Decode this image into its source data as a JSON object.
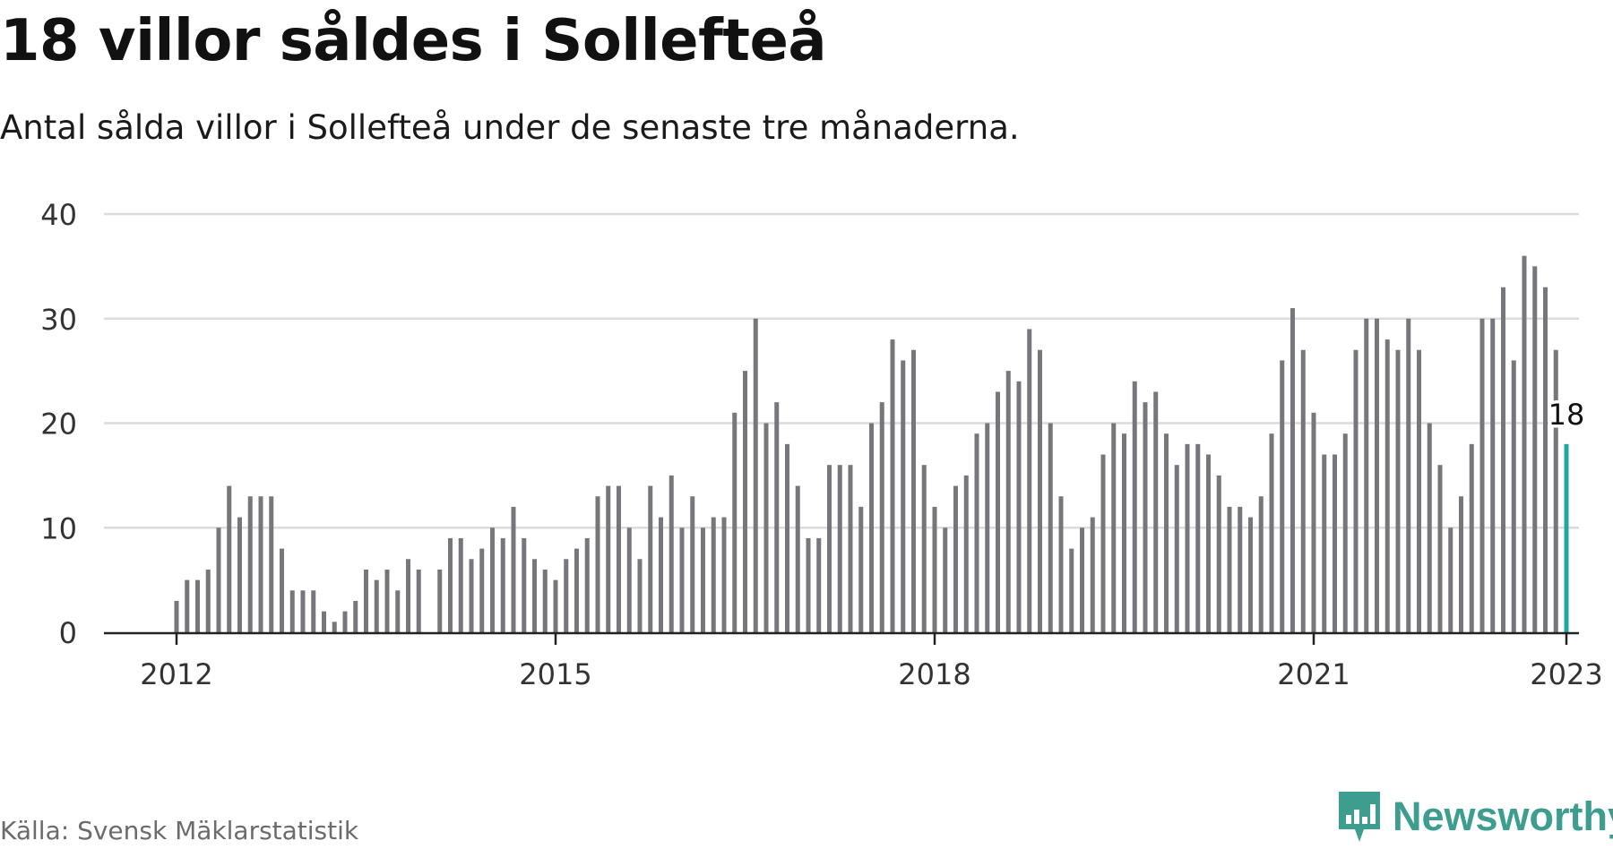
{
  "title": "18 villor såldes i Sollefteå",
  "subtitle": "Antal sålda villor i Sollefteå under de senaste tre månaderna.",
  "source": "Källa: Svensk Mäklarstatistik",
  "brand": "Newsworthy",
  "brand_icon": "newsworthy-logo-icon",
  "colors": {
    "bar": "#77767b",
    "highlight": "#1fa89b",
    "grid": "#dcdcdc",
    "axis": "#222222",
    "brand": "#3d9d8f"
  },
  "chart_data": {
    "type": "bar",
    "x_axis": "date",
    "ylim": [
      0,
      40
    ],
    "yticks": [
      0,
      10,
      20,
      30,
      40
    ],
    "xticks": [
      "2012",
      "2015",
      "2018",
      "2021",
      "2023"
    ],
    "grid": true,
    "highlight": {
      "x": "2023-01",
      "value": 18,
      "label": "18"
    },
    "series": [
      {
        "x": [
          "2012-01",
          "2012-02",
          "2012-03",
          "2012-04",
          "2012-05",
          "2012-06",
          "2012-07",
          "2012-08",
          "2012-09",
          "2012-10",
          "2012-11",
          "2012-12",
          "2013-01",
          "2013-02",
          "2013-03",
          "2013-04",
          "2013-05",
          "2013-06",
          "2013-07",
          "2013-08",
          "2013-09",
          "2013-10",
          "2013-11",
          "2013-12",
          "2014-01",
          "2014-02",
          "2014-03",
          "2014-04",
          "2014-05",
          "2014-06",
          "2014-07",
          "2014-08",
          "2014-09",
          "2014-10",
          "2014-11",
          "2014-12",
          "2015-01",
          "2015-02",
          "2015-03",
          "2015-04",
          "2015-05",
          "2015-06",
          "2015-07",
          "2015-08",
          "2015-09",
          "2015-10",
          "2015-11",
          "2015-12",
          "2016-01",
          "2016-02",
          "2016-03",
          "2016-04",
          "2016-05",
          "2016-06",
          "2016-07",
          "2016-08",
          "2016-09",
          "2016-10",
          "2016-11",
          "2016-12",
          "2017-01",
          "2017-02",
          "2017-03",
          "2017-04",
          "2017-05",
          "2017-06",
          "2017-07",
          "2017-08",
          "2017-09",
          "2017-10",
          "2017-11",
          "2017-12",
          "2018-01",
          "2018-02",
          "2018-03",
          "2018-04",
          "2018-05",
          "2018-06",
          "2018-07",
          "2018-08",
          "2018-09",
          "2018-10",
          "2018-11",
          "2018-12",
          "2019-01",
          "2019-02",
          "2019-03",
          "2019-04",
          "2019-05",
          "2019-06",
          "2019-07",
          "2019-08",
          "2019-09",
          "2019-10",
          "2019-11",
          "2019-12",
          "2020-01",
          "2020-02",
          "2020-03",
          "2020-04",
          "2020-05",
          "2020-06",
          "2020-07",
          "2020-08",
          "2020-09",
          "2020-10",
          "2020-11",
          "2020-12",
          "2021-01",
          "2021-02",
          "2021-03",
          "2021-04",
          "2021-05",
          "2021-06",
          "2021-07",
          "2021-08",
          "2021-09",
          "2021-10",
          "2021-11",
          "2021-12",
          "2022-01",
          "2022-02",
          "2022-03",
          "2022-04",
          "2022-05",
          "2022-06",
          "2022-07",
          "2022-08",
          "2022-09",
          "2022-10",
          "2022-11",
          "2022-12",
          "2023-01"
        ],
        "values": [
          3,
          5,
          5,
          6,
          10,
          14,
          11,
          13,
          13,
          13,
          8,
          4,
          4,
          4,
          2,
          1,
          2,
          3,
          6,
          5,
          6,
          4,
          7,
          6,
          null,
          6,
          9,
          9,
          7,
          8,
          10,
          9,
          12,
          9,
          7,
          6,
          5,
          7,
          8,
          9,
          13,
          14,
          14,
          10,
          7,
          14,
          11,
          15,
          10,
          13,
          10,
          11,
          11,
          21,
          25,
          30,
          20,
          22,
          18,
          14,
          9,
          9,
          16,
          16,
          16,
          12,
          20,
          22,
          28,
          26,
          27,
          16,
          12,
          10,
          14,
          15,
          19,
          20,
          23,
          25,
          24,
          29,
          27,
          20,
          13,
          8,
          10,
          11,
          17,
          20,
          19,
          24,
          22,
          23,
          19,
          16,
          18,
          18,
          17,
          15,
          12,
          12,
          11,
          13,
          19,
          26,
          31,
          27,
          21,
          17,
          17,
          19,
          27,
          30,
          30,
          28,
          27,
          30,
          27,
          20,
          16,
          10,
          13,
          18,
          30,
          30,
          33,
          26,
          36,
          35,
          33,
          27,
          18
        ]
      }
    ]
  }
}
